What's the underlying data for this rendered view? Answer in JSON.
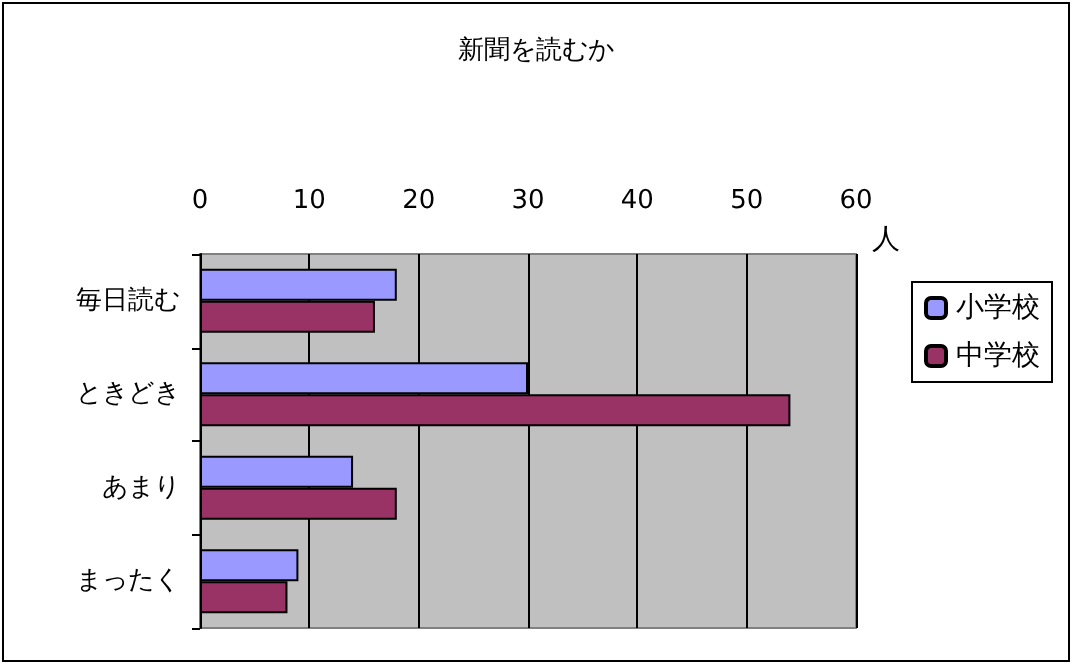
{
  "chart_data": {
    "type": "bar",
    "title": "新聞を読むか",
    "orientation": "horizontal",
    "xlabel": "人",
    "categories": [
      "毎日読む",
      "ときどき",
      "あまり",
      "まったく"
    ],
    "series": [
      {
        "name": "小学校",
        "color": "#9999ff",
        "values": [
          18,
          30,
          14,
          9
        ]
      },
      {
        "name": "中学校",
        "color": "#993366",
        "values": [
          16,
          54,
          18,
          8
        ]
      }
    ],
    "xlim": [
      0,
      60
    ],
    "xticks": [
      0,
      10,
      20,
      30,
      40,
      50,
      60
    ],
    "grid": "x",
    "legend": "right"
  }
}
